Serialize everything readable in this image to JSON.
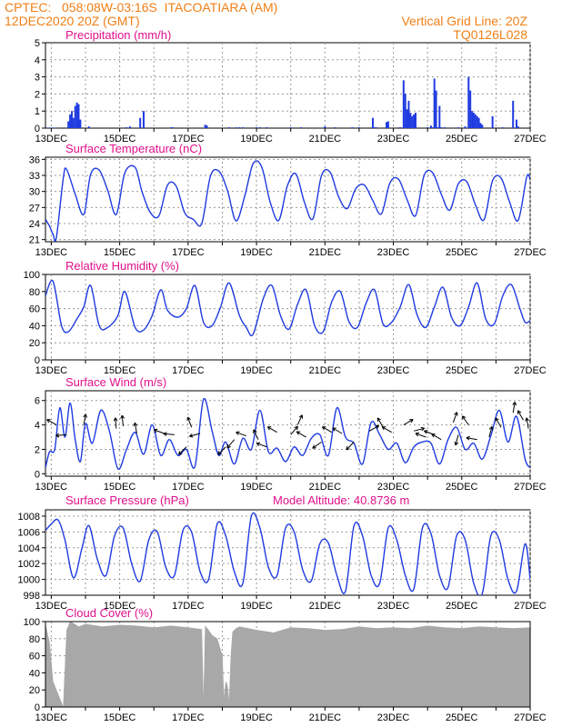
{
  "header": {
    "line1_left": "CPTEC:   058:08W-03:16S  ITACOATIARA (AM)",
    "line2_left": "12DEC2020 20Z (GMT)",
    "line1_right": "Vertical Grid Line: 20Z",
    "line2_right": "TQ0126L028"
  },
  "colors": {
    "header": "#f07f16",
    "title": "#e0108c",
    "line": "#1f3be0",
    "bar": "#1f3be0",
    "cloud": "#a8a8a8",
    "grid": "#9a9a9a",
    "frame": "#000000"
  },
  "chart_data": [
    {
      "id": "precip",
      "type": "bar",
      "title": "Precipitation (mm/h)",
      "ylim": [
        0,
        5
      ],
      "yticks": [
        0,
        1,
        2,
        3,
        4,
        5
      ],
      "xlim": [
        12.83,
        27.0
      ],
      "xticks": [
        "13DEC",
        "15DEC",
        "17DEC",
        "19DEC",
        "21DEC",
        "23DEC",
        "25DEC",
        "27DEC"
      ],
      "x": [
        12.9,
        13.0,
        13.1,
        13.5,
        13.55,
        13.6,
        13.65,
        13.7,
        13.75,
        13.8,
        13.85,
        14.1,
        15.2,
        15.3,
        15.6,
        15.7,
        16.5,
        16.55,
        17.5,
        17.55,
        18.2,
        18.4,
        18.5,
        18.6,
        19.0,
        19.1,
        19.3,
        20.0,
        20.3,
        21.0,
        21.3,
        21.8,
        22.0,
        22.4,
        22.45,
        22.5,
        22.8,
        22.85,
        23.2,
        23.3,
        23.35,
        23.4,
        23.45,
        23.5,
        23.55,
        23.6,
        23.65,
        24.0,
        24.1,
        24.15,
        24.2,
        24.25,
        24.3,
        24.35,
        24.4,
        24.5,
        24.9,
        25.1,
        25.2,
        25.25,
        25.3,
        25.35,
        25.4,
        25.45,
        25.5,
        25.55,
        25.6,
        25.9,
        26.2,
        26.5,
        26.6,
        26.65
      ],
      "values": [
        0.03,
        0.03,
        0.03,
        0.4,
        0.8,
        1.0,
        0.6,
        1.3,
        1.5,
        1.4,
        0.5,
        0.1,
        0.05,
        0.1,
        0.6,
        1.0,
        0.05,
        0.05,
        0.2,
        0.15,
        0.05,
        0.05,
        0.05,
        0.05,
        0.05,
        0.05,
        0.05,
        0.05,
        0.05,
        0.1,
        0.05,
        0.05,
        0.05,
        0.6,
        0.05,
        0.05,
        0.35,
        0.4,
        0.05,
        2.8,
        2.0,
        1.1,
        1.6,
        0.9,
        0.7,
        0.8,
        0.9,
        0.05,
        0.15,
        0.05,
        2.9,
        2.2,
        0.05,
        1.3,
        0.05,
        0.05,
        0.05,
        0.1,
        3.0,
        2.2,
        1.0,
        0.9,
        0.8,
        0.7,
        0.6,
        0.3,
        0.2,
        0.7,
        0.05,
        1.6,
        0.5,
        0.1
      ]
    },
    {
      "id": "temp",
      "type": "line",
      "title": "Surface Temperature (nC)",
      "ylim": [
        20.6,
        36.4
      ],
      "yticks": [
        21,
        24,
        27,
        30,
        33,
        36
      ],
      "xlim": [
        12.83,
        27.0
      ],
      "xticks": [
        "13DEC",
        "15DEC",
        "17DEC",
        "19DEC",
        "21DEC",
        "23DEC",
        "25DEC",
        "27DEC"
      ],
      "x": [
        12.83,
        12.95,
        13.05,
        13.15,
        13.35,
        13.45,
        13.7,
        13.95,
        14.15,
        14.4,
        14.65,
        14.9,
        15.15,
        15.45,
        15.65,
        15.9,
        16.15,
        16.4,
        16.65,
        16.9,
        17.15,
        17.4,
        17.65,
        17.9,
        18.15,
        18.4,
        18.65,
        18.9,
        19.15,
        19.4,
        19.65,
        19.9,
        20.15,
        20.4,
        20.65,
        20.9,
        21.15,
        21.4,
        21.65,
        21.9,
        22.15,
        22.4,
        22.65,
        22.9,
        23.15,
        23.4,
        23.65,
        23.9,
        24.15,
        24.4,
        24.65,
        24.9,
        25.15,
        25.4,
        25.65,
        25.9,
        26.15,
        26.4,
        26.65,
        26.9,
        27.0
      ],
      "values": [
        24.8,
        23.5,
        22.0,
        21.4,
        32.5,
        34.1,
        29.5,
        25.7,
        33.2,
        34.0,
        30.2,
        25.7,
        33.5,
        34.5,
        30.0,
        26.0,
        25.5,
        31.2,
        31.0,
        26.0,
        24.8,
        24.0,
        32.8,
        33.8,
        30.2,
        24.5,
        29.0,
        35.2,
        34.6,
        28.0,
        24.6,
        31.0,
        33.3,
        28.0,
        24.9,
        33.0,
        33.6,
        29.0,
        26.8,
        30.5,
        31.2,
        28.3,
        25.8,
        31.6,
        32.3,
        28.5,
        25.5,
        33.0,
        33.5,
        29.5,
        26.5,
        31.4,
        31.8,
        27.5,
        24.7,
        32.0,
        32.5,
        28.0,
        24.6,
        32.7,
        32.2
      ]
    },
    {
      "id": "rh",
      "type": "line",
      "title": "Relative Humidity (%)",
      "ylim": [
        0,
        100
      ],
      "yticks": [
        0,
        20,
        40,
        60,
        80,
        100
      ],
      "xlim": [
        12.83,
        27.0
      ],
      "xticks": [
        "13DEC",
        "15DEC",
        "17DEC",
        "19DEC",
        "21DEC",
        "23DEC",
        "25DEC",
        "27DEC"
      ],
      "x": [
        12.83,
        13.05,
        13.3,
        13.5,
        13.75,
        13.95,
        14.15,
        14.4,
        14.65,
        14.95,
        15.15,
        15.45,
        15.7,
        15.95,
        16.2,
        16.4,
        16.7,
        16.95,
        17.2,
        17.45,
        17.7,
        17.95,
        18.2,
        18.5,
        18.7,
        18.9,
        19.2,
        19.45,
        19.7,
        19.95,
        20.2,
        20.45,
        20.7,
        20.95,
        21.2,
        21.45,
        21.7,
        21.95,
        22.2,
        22.45,
        22.7,
        22.95,
        23.2,
        23.45,
        23.7,
        23.95,
        24.2,
        24.45,
        24.7,
        24.95,
        25.2,
        25.45,
        25.7,
        25.95,
        26.2,
        26.45,
        26.7,
        26.85,
        27.0
      ],
      "values": [
        75,
        92,
        40,
        33,
        48,
        62,
        87,
        40,
        38,
        52,
        80,
        38,
        35,
        52,
        82,
        58,
        50,
        60,
        87,
        44,
        40,
        62,
        90,
        52,
        38,
        30,
        72,
        87,
        52,
        36,
        65,
        82,
        40,
        33,
        68,
        80,
        45,
        38,
        66,
        82,
        42,
        44,
        62,
        88,
        52,
        38,
        62,
        85,
        50,
        40,
        62,
        90,
        48,
        42,
        75,
        88,
        60,
        44,
        46
      ]
    },
    {
      "id": "wind",
      "type": "line",
      "title": "Surface Wind (m/s)",
      "ylim": [
        -0.2,
        6.8
      ],
      "yticks": [
        0,
        2,
        4,
        6
      ],
      "xlim": [
        12.83,
        27.0
      ],
      "xticks": [
        "13DEC",
        "15DEC",
        "17DEC",
        "19DEC",
        "21DEC",
        "23DEC",
        "25DEC",
        "27DEC"
      ],
      "x": [
        12.83,
        12.95,
        13.1,
        13.25,
        13.4,
        13.55,
        13.7,
        13.85,
        14.0,
        14.2,
        14.45,
        14.7,
        14.95,
        15.2,
        15.45,
        15.7,
        15.95,
        16.2,
        16.45,
        16.7,
        16.95,
        17.2,
        17.45,
        17.7,
        17.9,
        18.1,
        18.35,
        18.6,
        18.85,
        19.1,
        19.35,
        19.6,
        19.85,
        20.1,
        20.35,
        20.6,
        20.85,
        21.1,
        21.35,
        21.6,
        21.85,
        22.1,
        22.35,
        22.6,
        22.85,
        23.1,
        23.35,
        23.6,
        23.85,
        24.1,
        24.35,
        24.6,
        24.85,
        25.1,
        25.35,
        25.6,
        25.85,
        26.1,
        26.35,
        26.6,
        26.85,
        27.0
      ],
      "values": [
        0.5,
        1.8,
        2.0,
        5.4,
        3.0,
        5.8,
        2.8,
        1.0,
        4.1,
        2.5,
        5.2,
        3.5,
        0.4,
        2.0,
        3.4,
        1.6,
        4.0,
        1.5,
        2.8,
        1.5,
        2.0,
        0.6,
        6.1,
        3.5,
        1.5,
        2.6,
        0.8,
        2.9,
        2.0,
        5.2,
        1.8,
        2.1,
        1.0,
        2.2,
        1.5,
        2.9,
        3.2,
        1.5,
        5.4,
        3.0,
        2.5,
        0.8,
        4.2,
        3.2,
        2.0,
        2.5,
        0.9,
        2.2,
        2.6,
        2.5,
        0.8,
        2.8,
        3.8,
        2.0,
        2.5,
        1.2,
        3.1,
        5.2,
        2.6,
        4.7,
        1.2,
        0.5
      ],
      "arrows": [
        {
          "x": 13.15,
          "v": 4.0,
          "dir": 150
        },
        {
          "x": 13.45,
          "v": 3.2,
          "dir": 185
        },
        {
          "x": 13.95,
          "v": 4.0,
          "dir": 80
        },
        {
          "x": 14.9,
          "v": 3.7,
          "dir": 95
        },
        {
          "x": 15.1,
          "v": 3.9,
          "dir": 95
        },
        {
          "x": 15.5,
          "v": 3.3,
          "dir": 100
        },
        {
          "x": 16.3,
          "v": 3.3,
          "dir": 160
        },
        {
          "x": 16.6,
          "v": 3.2,
          "dir": 175
        },
        {
          "x": 16.95,
          "v": 2.2,
          "dir": 225
        },
        {
          "x": 17.1,
          "v": 3.8,
          "dir": 110
        },
        {
          "x": 17.35,
          "v": 3.3,
          "dir": 195
        },
        {
          "x": 18.1,
          "v": 2.2,
          "dir": 225
        },
        {
          "x": 18.35,
          "v": 2.8,
          "dir": 230
        },
        {
          "x": 18.7,
          "v": 3.1,
          "dir": 160
        },
        {
          "x": 19.05,
          "v": 2.8,
          "dir": 115
        },
        {
          "x": 19.3,
          "v": 2.2,
          "dir": 160
        },
        {
          "x": 19.6,
          "v": 3.4,
          "dir": 150
        },
        {
          "x": 20.0,
          "v": 3.2,
          "dir": 50
        },
        {
          "x": 20.2,
          "v": 4.0,
          "dir": 65
        },
        {
          "x": 20.45,
          "v": 3.0,
          "dir": 150
        },
        {
          "x": 20.9,
          "v": 2.6,
          "dir": 215
        },
        {
          "x": 21.2,
          "v": 3.4,
          "dir": 150
        },
        {
          "x": 21.5,
          "v": 3.3,
          "dir": 150
        },
        {
          "x": 21.85,
          "v": 2.6,
          "dir": 225
        },
        {
          "x": 22.3,
          "v": 3.5,
          "dir": 30
        },
        {
          "x": 22.7,
          "v": 3.8,
          "dir": 120
        },
        {
          "x": 22.95,
          "v": 3.4,
          "dir": 150
        },
        {
          "x": 23.3,
          "v": 4.0,
          "dir": 30
        },
        {
          "x": 23.6,
          "v": 3.5,
          "dir": 15
        },
        {
          "x": 23.95,
          "v": 3.0,
          "dir": 160
        },
        {
          "x": 24.2,
          "v": 3.2,
          "dir": 160
        },
        {
          "x": 24.4,
          "v": 2.8,
          "dir": 150
        },
        {
          "x": 24.75,
          "v": 4.2,
          "dir": 70
        },
        {
          "x": 24.9,
          "v": 3.2,
          "dir": 255
        },
        {
          "x": 25.2,
          "v": 4.0,
          "dir": 125
        },
        {
          "x": 25.45,
          "v": 2.8,
          "dir": 170
        },
        {
          "x": 25.8,
          "v": 3.0,
          "dir": 75
        },
        {
          "x": 26.15,
          "v": 3.8,
          "dir": 120
        },
        {
          "x": 26.5,
          "v": 5.0,
          "dir": 80
        },
        {
          "x": 26.8,
          "v": 4.4,
          "dir": 120
        },
        {
          "x": 26.95,
          "v": 3.7,
          "dir": 100
        }
      ]
    },
    {
      "id": "press",
      "type": "line",
      "title": "Surface Pressure (hPa)",
      "extra_title": "Model Altitude: 40.8736 m",
      "ylim": [
        998,
        1008.8
      ],
      "yticks": [
        998,
        1000,
        1002,
        1004,
        1006,
        1008
      ],
      "xlim": [
        12.83,
        27.0
      ],
      "xticks": [
        "13DEC",
        "15DEC",
        "17DEC",
        "19DEC",
        "21DEC",
        "23DEC",
        "25DEC",
        "27DEC"
      ],
      "x": [
        12.83,
        13.0,
        13.2,
        13.4,
        13.65,
        13.9,
        14.1,
        14.35,
        14.6,
        14.85,
        15.1,
        15.35,
        15.6,
        15.85,
        16.1,
        16.35,
        16.6,
        16.85,
        17.1,
        17.35,
        17.6,
        17.85,
        18.1,
        18.35,
        18.6,
        18.85,
        19.1,
        19.35,
        19.6,
        19.85,
        20.1,
        20.35,
        20.6,
        20.85,
        21.1,
        21.35,
        21.6,
        21.85,
        22.1,
        22.35,
        22.6,
        22.85,
        23.1,
        23.35,
        23.6,
        23.85,
        24.1,
        24.35,
        24.6,
        24.85,
        25.1,
        25.35,
        25.6,
        25.85,
        26.1,
        26.35,
        26.6,
        26.85,
        27.0
      ],
      "values": [
        1006.2,
        1007.0,
        1007.5,
        1005.0,
        1000.2,
        1004.0,
        1006.8,
        1002.5,
        1000.5,
        1005.5,
        1006.5,
        1002.0,
        999.8,
        1005.0,
        1006.0,
        1001.5,
        1000.5,
        1006.2,
        1006.0,
        1001.0,
        1000.0,
        1007.0,
        1005.5,
        1001.0,
        999.5,
        1008.0,
        1006.5,
        1001.5,
        1000.5,
        1006.5,
        1006.0,
        1001.2,
        999.8,
        1004.5,
        1004.6,
        1000.5,
        998.5,
        1006.8,
        1005.5,
        1000.5,
        999.5,
        1006.5,
        1005.0,
        1000.5,
        998.8,
        1006.5,
        1005.8,
        1000.5,
        999.0,
        1005.5,
        1005.0,
        999.5,
        998.2,
        1005.5,
        1005.0,
        1000.0,
        998.5,
        1004.5,
        1000.0
      ]
    },
    {
      "id": "cloud",
      "type": "area",
      "title": "Cloud Cover (%)",
      "ylim": [
        0,
        100
      ],
      "yticks": [
        0,
        20,
        40,
        60,
        80,
        100
      ],
      "xlim": [
        12.83,
        27.0
      ],
      "xticks": [
        "13DEC",
        "15DEC",
        "17DEC",
        "19DEC",
        "21DEC",
        "23DEC",
        "25DEC",
        "27DEC"
      ],
      "x": [
        12.83,
        12.95,
        13.05,
        13.15,
        13.25,
        13.35,
        13.45,
        13.55,
        13.65,
        13.8,
        14.0,
        14.5,
        15.0,
        15.5,
        16.0,
        16.5,
        17.0,
        17.4,
        17.45,
        17.5,
        17.6,
        17.7,
        17.85,
        18.0,
        18.05,
        18.1,
        18.15,
        18.2,
        18.25,
        18.3,
        18.4,
        18.5,
        19.0,
        19.5,
        20.0,
        20.5,
        21.0,
        21.5,
        22.0,
        22.5,
        23.0,
        23.5,
        24.0,
        24.5,
        25.0,
        25.5,
        26.0,
        26.5,
        27.0
      ],
      "values": [
        97,
        75,
        30,
        20,
        10,
        0,
        90,
        100,
        98,
        94,
        97,
        94,
        96,
        95,
        93,
        95,
        93,
        91,
        2,
        95,
        90,
        84,
        80,
        60,
        8,
        30,
        25,
        5,
        60,
        88,
        92,
        94,
        90,
        87,
        93,
        92,
        90,
        91,
        94,
        92,
        93,
        92,
        95,
        93,
        92,
        94,
        93,
        92,
        93
      ]
    }
  ]
}
